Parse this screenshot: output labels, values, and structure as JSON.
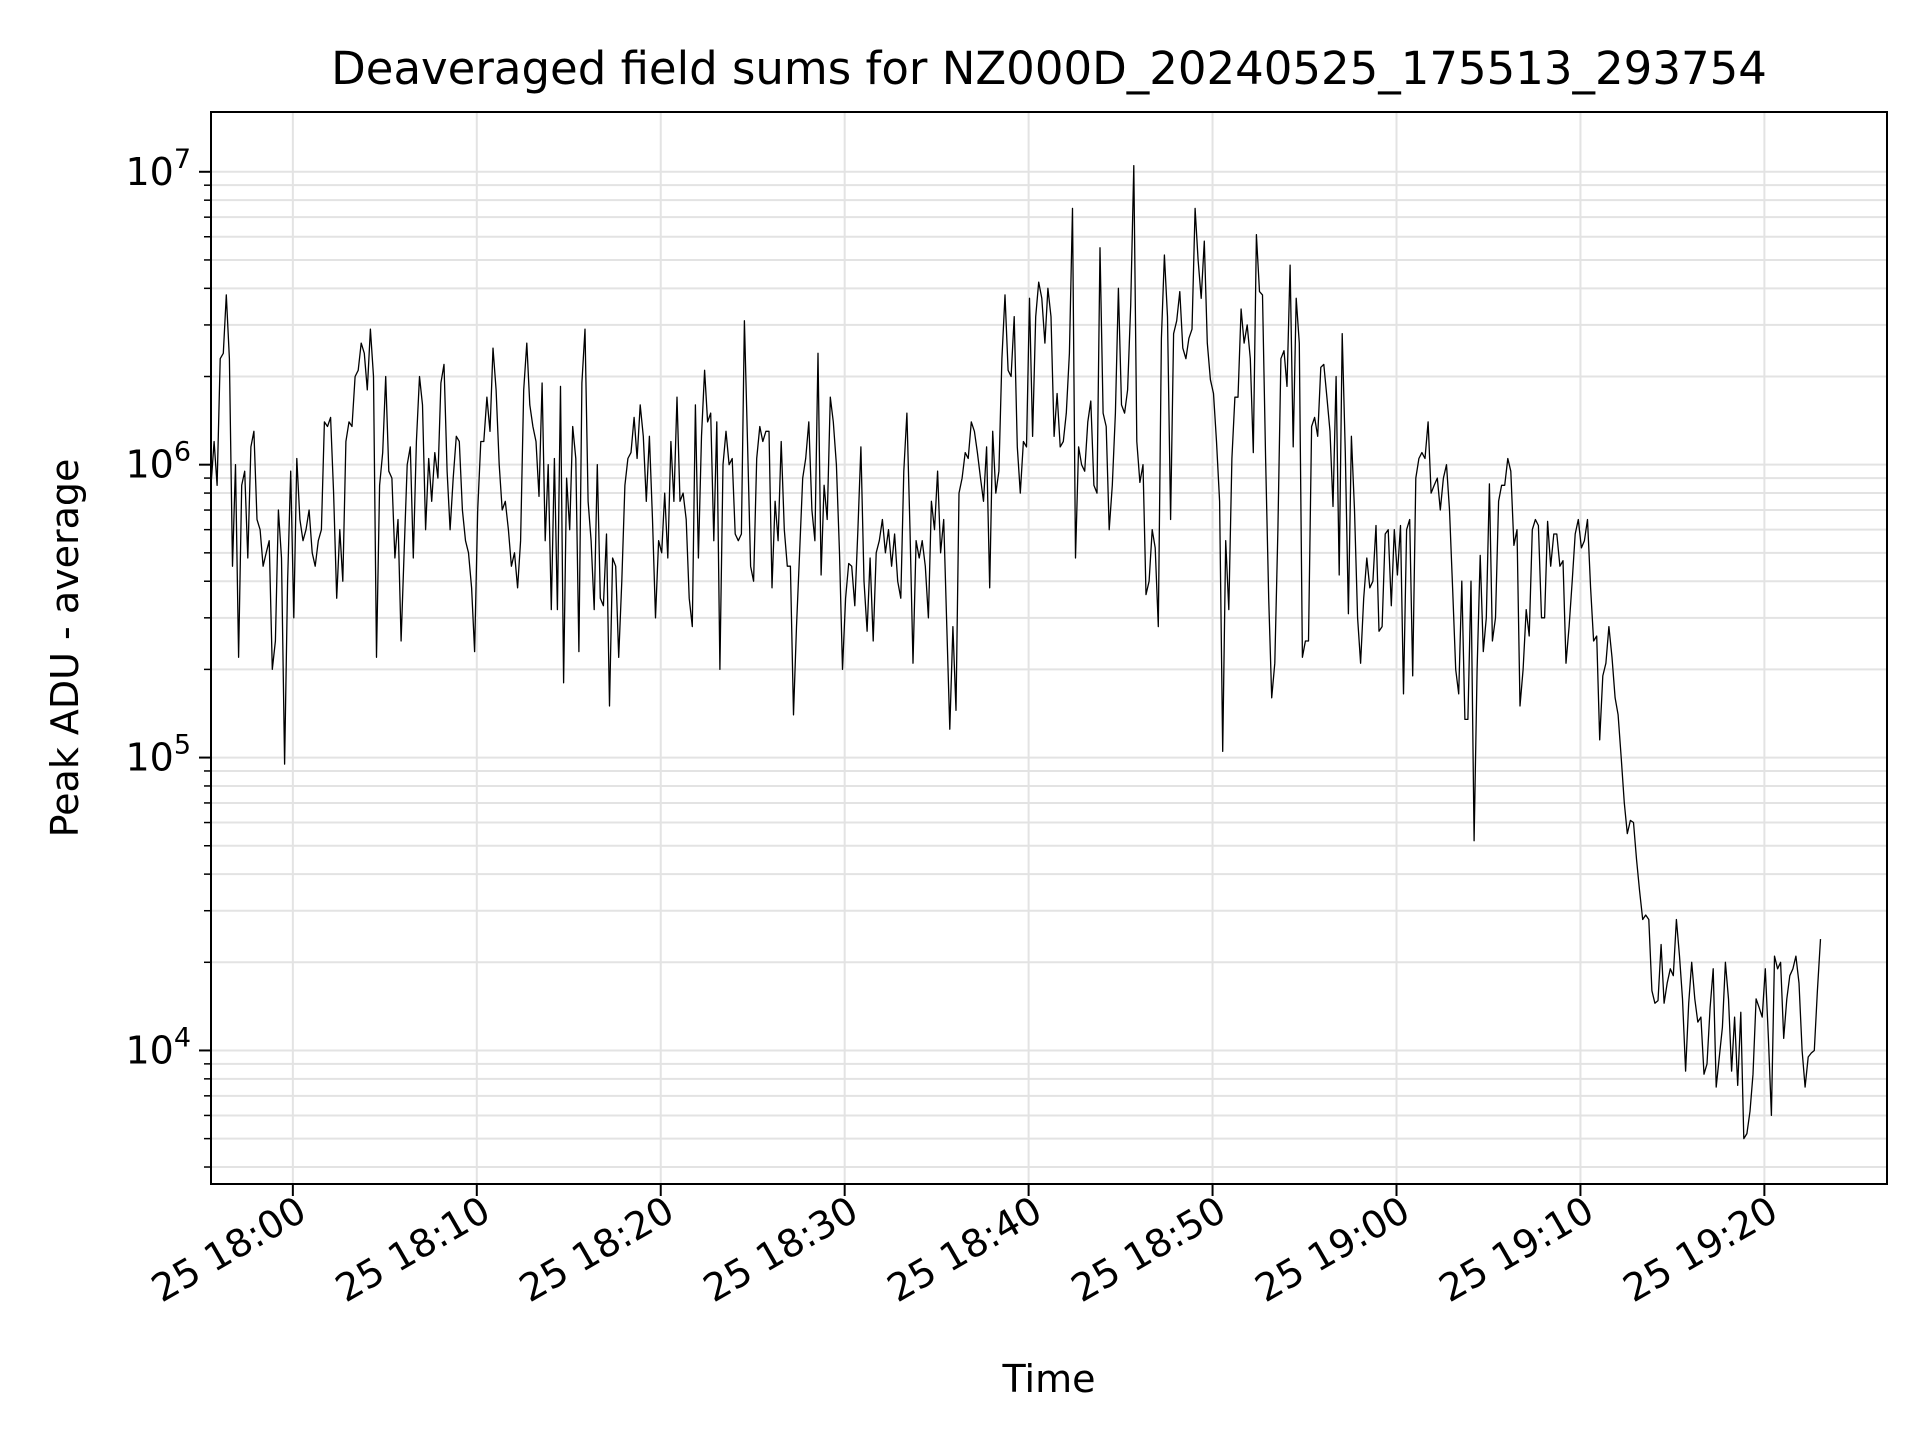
{
  "chart_data": {
    "type": "line",
    "title": "Deaveraged field sums for NZ000D_20240525_175513_293754",
    "xlabel": "Time",
    "ylabel": "Peak ADU - average",
    "yscale": "log",
    "xlim": [
      "2024-05-25 17:55:33",
      "2024-05-25 19:26:40"
    ],
    "ylim": [
      3500,
      16000000
    ],
    "grid": true,
    "legend": "none",
    "line_color": "#000000",
    "x_ticks": [
      "25 18:00",
      "25 18:10",
      "25 18:20",
      "25 18:30",
      "25 18:40",
      "25 18:50",
      "25 19:00",
      "25 19:10",
      "25 19:20"
    ],
    "y_ticks": [
      {
        "value": 10000,
        "base": "10",
        "exp": "4"
      },
      {
        "value": 100000,
        "base": "10",
        "exp": "5"
      },
      {
        "value": 1000000,
        "base": "10",
        "exp": "6"
      },
      {
        "value": 10000000,
        "base": "10",
        "exp": "7"
      }
    ],
    "x_start": "2024-05-25 17:55:33",
    "x_step_seconds": 10,
    "series": [
      {
        "values": [
          850000,
          1200000,
          850000,
          2300000,
          2400000,
          3800000,
          2300000,
          450000,
          1000000,
          220000,
          850000,
          950000,
          480000,
          1150000,
          1300000,
          650000,
          600000,
          450000,
          500000,
          550000,
          200000,
          250000,
          700000,
          480000,
          95000,
          400000,
          950000,
          300000,
          1050000,
          650000,
          550000,
          600000,
          700000,
          500000,
          450000,
          550000,
          600000,
          1400000,
          1350000,
          1450000,
          800000,
          350000,
          600000,
          400000,
          1200000,
          1400000,
          1350000,
          2000000,
          2100000,
          2600000,
          2400000,
          1800000,
          2900000,
          2000000,
          220000,
          850000,
          1100000,
          2000000,
          950000,
          900000,
          480000,
          650000,
          250000,
          500000,
          1000000,
          1150000,
          480000,
          1200000,
          2000000,
          1600000,
          600000,
          1050000,
          750000,
          1100000,
          900000,
          1900000,
          2200000,
          950000,
          600000,
          900000,
          1250000,
          1200000,
          700000,
          550000,
          500000,
          380000,
          230000,
          700000,
          1200000,
          1200000,
          1700000,
          1300000,
          2500000,
          1800000,
          1000000,
          700000,
          750000,
          600000,
          450000,
          500000,
          380000,
          550000,
          1800000,
          2600000,
          1600000,
          1350000,
          1200000,
          780000,
          1900000,
          550000,
          1000000,
          320000,
          1050000,
          320000,
          1850000,
          180000,
          900000,
          600000,
          1350000,
          1050000,
          230000,
          1900000,
          2900000,
          750000,
          550000,
          320000,
          1000000,
          350000,
          330000,
          580000,
          150000,
          480000,
          450000,
          220000,
          400000,
          850000,
          1050000,
          1100000,
          1450000,
          1050000,
          1600000,
          1250000,
          750000,
          1250000,
          650000,
          300000,
          550000,
          500000,
          800000,
          480000,
          1200000,
          750000,
          1700000,
          750000,
          800000,
          650000,
          350000,
          280000,
          1600000,
          480000,
          1250000,
          2100000,
          1400000,
          1500000,
          550000,
          1400000,
          200000,
          1000000,
          1300000,
          1000000,
          1050000,
          580000,
          550000,
          580000,
          3100000,
          1200000,
          450000,
          400000,
          1050000,
          1350000,
          1200000,
          1300000,
          1300000,
          380000,
          750000,
          550000,
          1200000,
          600000,
          450000,
          450000,
          140000,
          280000,
          500000,
          900000,
          1050000,
          1400000,
          700000,
          550000,
          2400000,
          420000,
          850000,
          650000,
          1700000,
          1400000,
          1000000,
          500000,
          200000,
          350000,
          460000,
          450000,
          330000,
          600000,
          1150000,
          400000,
          270000,
          480000,
          250000,
          500000,
          550000,
          650000,
          500000,
          600000,
          450000,
          580000,
          400000,
          350000,
          950000,
          1500000,
          600000,
          210000,
          550000,
          480000,
          550000,
          450000,
          300000,
          750000,
          600000,
          950000,
          500000,
          650000,
          280000,
          125000,
          280000,
          145000,
          800000,
          900000,
          1100000,
          1050000,
          1400000,
          1300000,
          1100000,
          900000,
          750000,
          1150000,
          380000,
          1300000,
          800000,
          950000,
          2300000,
          3800000,
          2100000,
          2000000,
          3200000,
          1150000,
          800000,
          1200000,
          1150000,
          3700000,
          1250000,
          3200000,
          4200000,
          3700000,
          2600000,
          4000000,
          3200000,
          1250000,
          1750000,
          1150000,
          1200000,
          1500000,
          2400000,
          7500000,
          480000,
          1150000,
          1000000,
          950000,
          1400000,
          1650000,
          850000,
          800000,
          5500000,
          1500000,
          1350000,
          600000,
          850000,
          1500000,
          4000000,
          1600000,
          1500000,
          1800000,
          3500000,
          10500000,
          1200000,
          870000,
          1000000,
          360000,
          400000,
          600000,
          520000,
          280000,
          2700000,
          5200000,
          3200000,
          650000,
          2800000,
          3100000,
          3900000,
          2500000,
          2300000,
          2700000,
          2900000,
          7500000,
          5000000,
          3700000,
          5800000,
          2600000,
          1950000,
          1750000,
          1200000,
          750000,
          105000,
          550000,
          320000,
          1050000,
          1700000,
          1700000,
          3400000,
          2600000,
          3000000,
          2300000,
          1100000,
          6100000,
          3900000,
          3800000,
          1050000,
          350000,
          160000,
          210000,
          600000,
          2300000,
          2450000,
          1850000,
          4800000,
          1150000,
          3700000,
          2600000,
          220000,
          250000,
          250000,
          1350000,
          1450000,
          1250000,
          2150000,
          2200000,
          1700000,
          1300000,
          720000,
          2000000,
          420000,
          2800000,
          1100000,
          310000,
          1250000,
          700000,
          300000,
          210000,
          350000,
          480000,
          380000,
          400000,
          620000,
          270000,
          280000,
          580000,
          600000,
          330000,
          600000,
          420000,
          620000,
          165000,
          600000,
          650000,
          190000,
          900000,
          1050000,
          1100000,
          1050000,
          1400000,
          800000,
          850000,
          900000,
          700000,
          900000,
          1000000,
          700000,
          380000,
          200000,
          165000,
          400000,
          135000,
          135000,
          400000,
          52000,
          200000,
          490000,
          230000,
          300000,
          860000,
          250000,
          300000,
          750000,
          850000,
          850000,
          1050000,
          950000,
          530000,
          600000,
          150000,
          200000,
          320000,
          260000,
          600000,
          650000,
          620000,
          300000,
          300000,
          640000,
          450000,
          580000,
          580000,
          450000,
          470000,
          210000,
          280000,
          400000,
          580000,
          650000,
          520000,
          550000,
          650000,
          380000,
          250000,
          260000,
          115000,
          190000,
          210000,
          280000,
          220000,
          160000,
          140000,
          100000,
          70000,
          55000,
          61000,
          60000,
          45000,
          35000,
          28000,
          29000,
          28000,
          16000,
          14500,
          14800,
          23000,
          14500,
          17000,
          19000,
          18000,
          28000,
          21000,
          15000,
          8500,
          14500,
          20000,
          15000,
          12500,
          13000,
          8300,
          9000,
          14000,
          19000,
          7500,
          9500,
          12000,
          20000,
          15000,
          8500,
          13000,
          7600,
          13500,
          5000,
          5200,
          6200,
          8300,
          15000,
          14000,
          13000,
          19000,
          11000,
          6000,
          21000,
          19000,
          20000,
          11000,
          15000,
          18000,
          19000,
          21000,
          17000,
          10000,
          7500,
          9500,
          9800,
          10000,
          16000,
          24000
        ]
      }
    ]
  }
}
